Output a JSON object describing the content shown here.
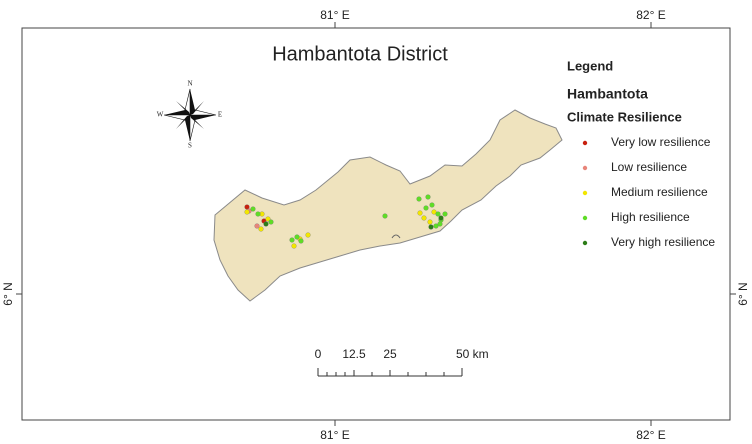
{
  "title": "Hambantota District",
  "graticule": {
    "top": [
      "81° E",
      "82° E"
    ],
    "bottom": [
      "81° E",
      "82° E"
    ],
    "left": [
      "6° N"
    ],
    "right": [
      "6° N"
    ]
  },
  "compass": {
    "north": "N",
    "south": "S",
    "east": "E",
    "west": "W"
  },
  "legend": {
    "heading": "Legend",
    "layer": "Hambantota",
    "field": "Climate Resilience",
    "items": [
      {
        "label": "Very low resilience",
        "color": "#c8200e"
      },
      {
        "label": "Low resilience",
        "color": "#e8857a"
      },
      {
        "label": "Medium resilience",
        "color": "#f2e600"
      },
      {
        "label": "High resilience",
        "color": "#5fdc26"
      },
      {
        "label": "Very high resilience",
        "color": "#2d7d18"
      }
    ]
  },
  "scale_bar": {
    "labels": [
      "0",
      "12.5",
      "25",
      "50 km"
    ]
  }
}
